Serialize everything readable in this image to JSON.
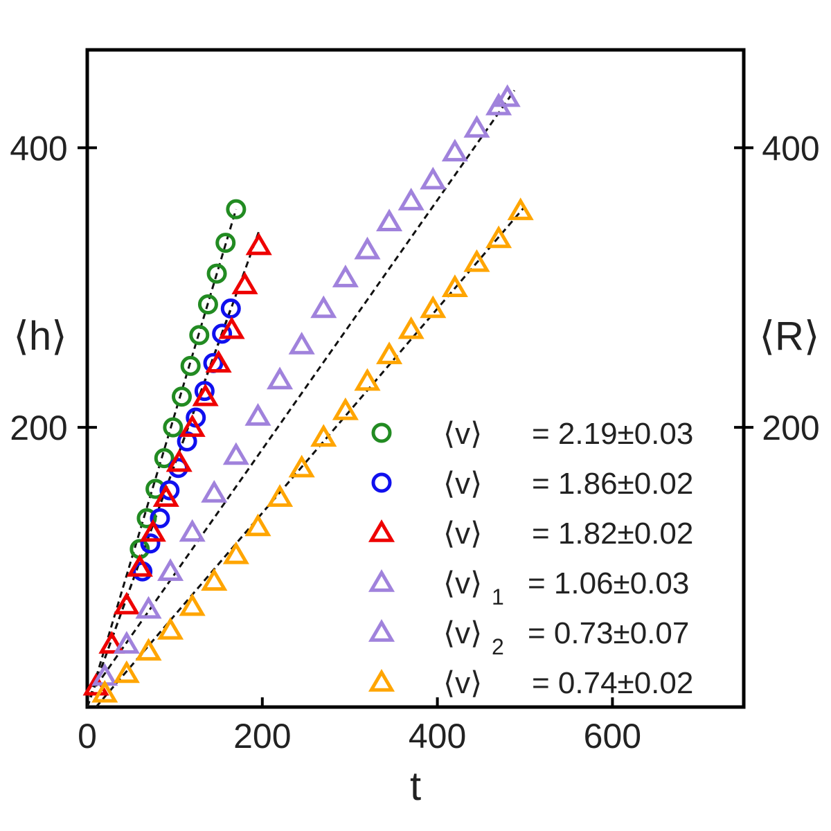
{
  "chart_data": {
    "type": "scatter",
    "xlabel": "t",
    "ylabel_left": "⟨h⟩",
    "ylabel_right": "⟨R⟩",
    "xlim": [
      0,
      750
    ],
    "ylim": [
      0,
      470
    ],
    "xticks": [
      0,
      200,
      400,
      600
    ],
    "yticks": [
      200,
      400
    ],
    "x_tick_labels": [
      "0",
      "200",
      "400",
      "600"
    ],
    "y_tick_labels_left": [
      "200",
      "400"
    ],
    "y_tick_labels_right": [
      "200",
      "400"
    ],
    "legend_position": "lower-right",
    "series": [
      {
        "name": "green circles",
        "marker": "circle",
        "color": "#228B22",
        "symbol": "⟨v⟩",
        "subscript": "",
        "value_text": "= 2.19±0.03",
        "x": [
          60,
          68,
          78,
          88,
          98,
          108,
          118,
          128,
          138,
          148,
          158,
          170
        ],
        "y": [
          113,
          135,
          156,
          178,
          200,
          222,
          244,
          266,
          288,
          310,
          332,
          356
        ],
        "fit": {
          "x0": 0,
          "y0": -20,
          "x1": 170,
          "y1": 356
        }
      },
      {
        "name": "blue circles",
        "marker": "circle",
        "color": "#1010EE",
        "symbol": "⟨v⟩",
        "subscript": "",
        "value_text": "= 1.86±0.02",
        "x": [
          63,
          72,
          83,
          94,
          104,
          114,
          124,
          134,
          144,
          154,
          164
        ],
        "y": [
          97,
          117,
          135,
          155,
          171,
          190,
          207,
          226,
          246,
          267,
          285
        ],
        "fit": {
          "x0": 0,
          "y0": -20,
          "x1": 164,
          "y1": 285
        }
      },
      {
        "name": "red triangles",
        "marker": "triangle",
        "color": "#EE0000",
        "symbol": "⟨v⟩",
        "subscript": "",
        "value_text": "= 1.82±0.02",
        "x": [
          10,
          28,
          45,
          60,
          75,
          90,
          105,
          120,
          135,
          150,
          165,
          180,
          196
        ],
        "y": [
          15,
          45,
          73,
          100,
          125,
          150,
          175,
          200,
          222,
          246,
          270,
          302,
          330
        ],
        "fit": {
          "x0": 0,
          "y0": -10,
          "x1": 196,
          "y1": 340
        }
      },
      {
        "name": "purple triangles 1",
        "marker": "triangle",
        "color": "#A082DC",
        "symbol": "⟨v⟩",
        "subscript": "1",
        "value_text": "= 1.06±0.03",
        "x": [
          20,
          45,
          70,
          95,
          120,
          145,
          170,
          195,
          220,
          245,
          270,
          295,
          320,
          345,
          370,
          395,
          420,
          445,
          470,
          480
        ],
        "y": [
          22,
          45,
          70,
          97,
          125,
          153,
          180,
          208,
          234,
          259,
          285,
          307,
          327,
          347,
          362,
          377,
          397,
          414,
          430,
          436
        ],
        "fit": {
          "x0": 10,
          "y0": 15,
          "x1": 488,
          "y1": 441
        }
      },
      {
        "name": "purple triangles 2",
        "marker": "triangle",
        "color": "#A082DC",
        "symbol": "⟨v⟩",
        "subscript": "2",
        "value_text": "= 0.73±0.07",
        "x": [],
        "y": []
      },
      {
        "name": "orange triangles",
        "marker": "triangle",
        "color": "#FFA500",
        "symbol": "⟨v⟩",
        "subscript": "",
        "value_text": "= 0.74±0.02",
        "x": [
          20,
          45,
          70,
          95,
          120,
          145,
          170,
          195,
          220,
          245,
          270,
          295,
          320,
          345,
          370,
          395,
          420,
          445,
          470,
          495
        ],
        "y": [
          10,
          24,
          40,
          55,
          72,
          90,
          109,
          129,
          150,
          171,
          193,
          212,
          233,
          252,
          270,
          285,
          300,
          318,
          335,
          355
        ],
        "fit": {
          "x0": 10,
          "y0": 0,
          "x1": 500,
          "y1": 358
        }
      }
    ]
  }
}
